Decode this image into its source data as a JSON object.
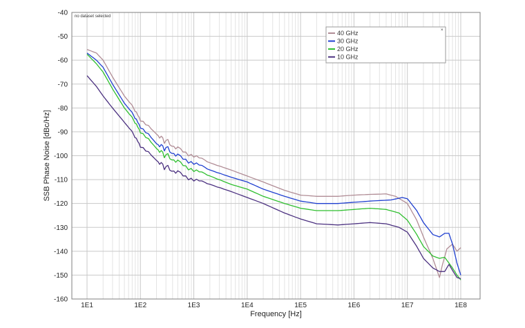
{
  "chart_data": {
    "type": "line",
    "note": "no dataset selected",
    "xlabel": "Frequency [Hz]",
    "ylabel": "SSB Phase Noise [dBc/Hz]",
    "x_scale": "log",
    "xlim": [
      10,
      100000000
    ],
    "ylim": [
      -160,
      -40
    ],
    "x_ticks": [
      "1E1",
      "1E2",
      "1E3",
      "1E4",
      "1E5",
      "1E6",
      "1E7",
      "1E8"
    ],
    "y_ticks": [
      "-40",
      "-50",
      "-60",
      "-70",
      "-80",
      "-90",
      "-100",
      "-110",
      "-120",
      "-130",
      "-140",
      "-150",
      "-160"
    ],
    "grid": true,
    "legend_position": "top-right",
    "legend_close_glyph": "×",
    "series": [
      {
        "name": "40 GHz",
        "color": "#b08c95",
        "points": [
          [
            10,
            -55.5
          ],
          [
            15,
            -57
          ],
          [
            20,
            -60
          ],
          [
            30,
            -67
          ],
          [
            50,
            -75
          ],
          [
            70,
            -79
          ],
          [
            100,
            -85
          ],
          [
            200,
            -91
          ],
          [
            300,
            -94
          ],
          [
            500,
            -97
          ],
          [
            1000,
            -100
          ],
          [
            2000,
            -103
          ],
          [
            5000,
            -106
          ],
          [
            10000,
            -108.5
          ],
          [
            20000,
            -111
          ],
          [
            50000,
            -114.5
          ],
          [
            100000,
            -116.5
          ],
          [
            200000,
            -117
          ],
          [
            500000,
            -117
          ],
          [
            1000000,
            -116.5
          ],
          [
            2000000,
            -116.2
          ],
          [
            4000000,
            -116
          ],
          [
            6000000,
            -117
          ],
          [
            10000000,
            -120
          ],
          [
            15000000,
            -127
          ],
          [
            20000000,
            -134
          ],
          [
            30000000,
            -143
          ],
          [
            40000000,
            -151
          ],
          [
            45000000,
            -146
          ],
          [
            55000000,
            -139
          ],
          [
            70000000,
            -137
          ],
          [
            85000000,
            -140
          ],
          [
            100000000,
            -138.5
          ]
        ]
      },
      {
        "name": "30 GHz",
        "color": "#1f3fd0",
        "points": [
          [
            10,
            -57
          ],
          [
            15,
            -60
          ],
          [
            20,
            -63
          ],
          [
            30,
            -70
          ],
          [
            50,
            -78
          ],
          [
            70,
            -82
          ],
          [
            100,
            -88
          ],
          [
            200,
            -95
          ],
          [
            300,
            -97
          ],
          [
            500,
            -100
          ],
          [
            1000,
            -103
          ],
          [
            2000,
            -106
          ],
          [
            5000,
            -109
          ],
          [
            10000,
            -111
          ],
          [
            20000,
            -114
          ],
          [
            50000,
            -117
          ],
          [
            100000,
            -119
          ],
          [
            200000,
            -120
          ],
          [
            500000,
            -120
          ],
          [
            1000000,
            -119.5
          ],
          [
            2000000,
            -119
          ],
          [
            5000000,
            -118.5
          ],
          [
            8000000,
            -117.5
          ],
          [
            10000000,
            -118
          ],
          [
            15000000,
            -123
          ],
          [
            20000000,
            -128
          ],
          [
            30000000,
            -133
          ],
          [
            40000000,
            -134
          ],
          [
            50000000,
            -132.5
          ],
          [
            60000000,
            -132.5
          ],
          [
            70000000,
            -137
          ],
          [
            85000000,
            -145
          ],
          [
            100000000,
            -150
          ]
        ]
      },
      {
        "name": "20 GHz",
        "color": "#2fbf2f",
        "points": [
          [
            10,
            -57.5
          ],
          [
            15,
            -61.5
          ],
          [
            20,
            -65
          ],
          [
            30,
            -72
          ],
          [
            50,
            -80
          ],
          [
            70,
            -84
          ],
          [
            100,
            -90
          ],
          [
            200,
            -97
          ],
          [
            300,
            -100
          ],
          [
            500,
            -102.5
          ],
          [
            1000,
            -106
          ],
          [
            2000,
            -108.5
          ],
          [
            5000,
            -112
          ],
          [
            10000,
            -114
          ],
          [
            20000,
            -117
          ],
          [
            50000,
            -120
          ],
          [
            100000,
            -122
          ],
          [
            200000,
            -123
          ],
          [
            500000,
            -123
          ],
          [
            1000000,
            -122.5
          ],
          [
            2000000,
            -122
          ],
          [
            4000000,
            -122.5
          ],
          [
            7000000,
            -124
          ],
          [
            10000000,
            -127
          ],
          [
            15000000,
            -133
          ],
          [
            20000000,
            -138
          ],
          [
            30000000,
            -142
          ],
          [
            40000000,
            -143
          ],
          [
            50000000,
            -142.5
          ],
          [
            70000000,
            -147
          ],
          [
            85000000,
            -150
          ],
          [
            100000000,
            -152
          ]
        ]
      },
      {
        "name": "10 GHz",
        "color": "#4a2f7f",
        "points": [
          [
            10,
            -66.5
          ],
          [
            15,
            -71
          ],
          [
            20,
            -75
          ],
          [
            30,
            -80
          ],
          [
            50,
            -86
          ],
          [
            70,
            -90
          ],
          [
            100,
            -96
          ],
          [
            200,
            -102
          ],
          [
            300,
            -105
          ],
          [
            500,
            -107
          ],
          [
            1000,
            -110
          ],
          [
            2000,
            -112
          ],
          [
            5000,
            -115
          ],
          [
            10000,
            -117.5
          ],
          [
            20000,
            -120
          ],
          [
            50000,
            -124
          ],
          [
            100000,
            -126.5
          ],
          [
            200000,
            -128.5
          ],
          [
            500000,
            -129
          ],
          [
            1000000,
            -128.5
          ],
          [
            2000000,
            -128
          ],
          [
            4000000,
            -128.5
          ],
          [
            7000000,
            -130
          ],
          [
            10000000,
            -132
          ],
          [
            15000000,
            -138
          ],
          [
            20000000,
            -143
          ],
          [
            30000000,
            -147
          ],
          [
            40000000,
            -148.5
          ],
          [
            50000000,
            -148.5
          ],
          [
            60000000,
            -145.5
          ],
          [
            70000000,
            -148
          ],
          [
            85000000,
            -151
          ],
          [
            100000000,
            -151.5
          ]
        ]
      }
    ]
  }
}
